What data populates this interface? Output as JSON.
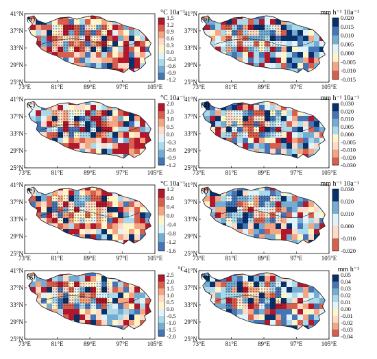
{
  "x_ticks": [
    "73°E",
    "81°E",
    "89°E",
    "97°E",
    "105°E"
  ],
  "y_ticks": [
    "41°N",
    "37°N",
    "33°N",
    "29°N",
    "25°N"
  ],
  "palette": {
    "warm": [
      "#b2182b",
      "#d6604d",
      "#f4a582",
      "#fddbc7",
      "#fff5c8"
    ],
    "cool": [
      "#e0f3f8",
      "#abd9e9",
      "#74add1",
      "#4575b4",
      "#08306b"
    ],
    "outline": "#222222",
    "stipple": "#000000"
  },
  "panels": [
    {
      "label": "(a)",
      "unit": "°C 10a⁻¹",
      "colorbar_ticks": [
        "1.5",
        "1.2",
        "0.9",
        "0.6",
        "0.3",
        "0.0",
        "-0.3",
        "-0.6",
        "-0.9",
        "-1.2"
      ],
      "colorbar_scheme": "warm-top"
    },
    {
      "label": "(b)",
      "unit": "mm h⁻¹ 10a⁻¹",
      "colorbar_ticks": [
        "0.020",
        "0.015",
        "0.010",
        "0.005",
        "0.000",
        "-0.005",
        "-0.010",
        "-0.015"
      ],
      "colorbar_scheme": "cool-top"
    },
    {
      "label": "(c)",
      "unit": "°C 10a⁻¹",
      "colorbar_ticks": [
        "2.0",
        "1.5",
        "1.0",
        "0.5",
        "0.0",
        "-0.3",
        "-0.6",
        "-0.9",
        "-1.2"
      ],
      "colorbar_scheme": "warm-top"
    },
    {
      "label": "(d)",
      "unit": "mm h⁻¹ 10a⁻¹",
      "colorbar_ticks": [
        "0.030",
        "0.020",
        "0.010",
        "0.005",
        "0.000",
        "-0.005",
        "-0.010",
        "-0.020",
        "-0.030"
      ],
      "colorbar_scheme": "cool-top"
    },
    {
      "label": "(e)",
      "unit": "°C 10a⁻¹",
      "colorbar_ticks": [
        "1.2",
        "0.8",
        "0.4",
        "0.0",
        "-0.4",
        "-0.8",
        "-1.2",
        "-1.6"
      ],
      "colorbar_scheme": "warm-top"
    },
    {
      "label": "(f)",
      "unit": "mm h⁻¹ 10a⁻¹",
      "colorbar_ticks": [
        "0.030",
        "0.020",
        "0.010",
        "0.000",
        "-0.010",
        "-0.020"
      ],
      "colorbar_scheme": "cool-top"
    },
    {
      "label": "(g)",
      "unit": "°C",
      "colorbar_ticks": [
        "2.5",
        "2.0",
        "1.5",
        "1.0",
        "0.5",
        "0.0",
        "-0.5",
        "-1.0",
        "-1.5",
        "-2.0"
      ],
      "colorbar_scheme": "warm-top"
    },
    {
      "label": "(h)",
      "unit": "mm h⁻¹",
      "colorbar_ticks": [
        "0.05",
        "0.04",
        "0.03",
        "0.02",
        "0.01",
        "0.00",
        "-0.01",
        "-0.02",
        "-0.03",
        "-0.04"
      ],
      "colorbar_scheme": "cool-top"
    }
  ]
}
